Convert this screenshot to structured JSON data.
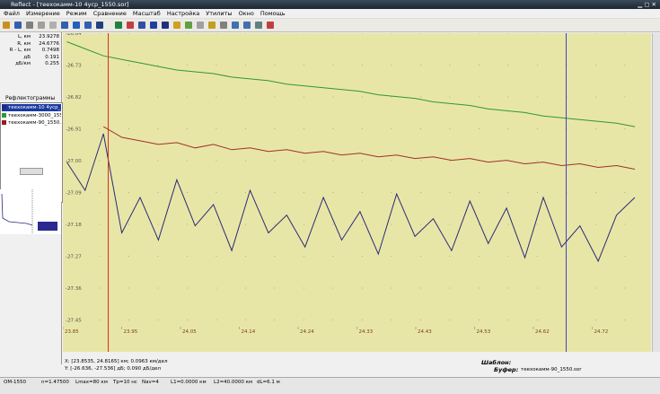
{
  "window": {
    "title": "Reflect - [теехокамм-10 4уср_1550.sor]"
  },
  "menu": [
    "Файл",
    "Измерение",
    "Режим",
    "Сравнение",
    "Масштаб",
    "Настройка",
    "Утилиты",
    "Окно",
    "Помощь"
  ],
  "measurements": [
    {
      "label": "L, км",
      "value": "23.9278"
    },
    {
      "label": "R, км",
      "value": "24.6776"
    },
    {
      "label": "R - L, км",
      "value": "0.7498"
    },
    {
      "label": "дБ",
      "value": "0.191"
    },
    {
      "label": "дБ/км",
      "value": "0.255"
    }
  ],
  "traces_panel": {
    "title": "Рефлектограммы",
    "items": [
      {
        "name": "теехокамм-10 4уср_",
        "color": "#1a2a8c"
      },
      {
        "name": "теехокамм-3000_1550",
        "color": "#2e9a2e"
      },
      {
        "name": "теехокамм-90_1550.s",
        "color": "#9a1a1a"
      }
    ]
  },
  "chart_data": {
    "type": "line",
    "xlim": [
      23.8535,
      24.8165
    ],
    "ylim": [
      -27.536,
      -26.636
    ],
    "xticks": [
      {
        "value": 23.8535,
        "label": "23.85"
      },
      {
        "value": 23.9498,
        "label": "23.95"
      },
      {
        "value": 24.0461,
        "label": "24.05"
      },
      {
        "value": 24.1424,
        "label": "24.14"
      },
      {
        "value": 24.2387,
        "label": "24.24"
      },
      {
        "value": 24.335,
        "label": "24.33"
      },
      {
        "value": 24.4313,
        "label": "24.43"
      },
      {
        "value": 24.5276,
        "label": "24.53"
      },
      {
        "value": 24.6239,
        "label": "24.62"
      },
      {
        "value": 24.7202,
        "label": "24.72"
      }
    ],
    "yticks": [
      {
        "value": -26.636,
        "label": "-26.64"
      },
      {
        "value": -26.726,
        "label": "-26.73"
      },
      {
        "value": -26.816,
        "label": "-26.82"
      },
      {
        "value": -26.906,
        "label": "-26.91"
      },
      {
        "value": -26.996,
        "label": "-27.00"
      },
      {
        "value": -27.086,
        "label": "-27.09"
      },
      {
        "value": -27.176,
        "label": "-27.18"
      },
      {
        "value": -27.266,
        "label": "-27.27"
      },
      {
        "value": -27.356,
        "label": "-27.36"
      },
      {
        "value": -27.446,
        "label": "-27.45"
      }
    ],
    "grid": true,
    "background": "#e8e6a6",
    "cursors": [
      {
        "value": 23.9278,
        "color": "#d03020"
      },
      {
        "value": 24.6776,
        "color": "#4040d0"
      }
    ],
    "x": [
      23.86,
      23.89,
      23.92,
      23.95,
      23.98,
      24.01,
      24.04,
      24.07,
      24.1,
      24.13,
      24.16,
      24.19,
      24.22,
      24.25,
      24.28,
      24.31,
      24.34,
      24.37,
      24.4,
      24.43,
      24.46,
      24.49,
      24.52,
      24.55,
      24.58,
      24.61,
      24.64,
      24.67,
      24.7,
      24.73,
      24.76,
      24.79
    ],
    "series": [
      {
        "name": "теехокамм-3000_1550",
        "color": "#2e9a2e",
        "values": [
          -26.66,
          -26.68,
          -26.7,
          -26.71,
          -26.72,
          -26.73,
          -26.74,
          -26.745,
          -26.75,
          -26.76,
          -26.765,
          -26.77,
          -26.78,
          -26.785,
          -26.79,
          -26.795,
          -26.8,
          -26.81,
          -26.815,
          -26.82,
          -26.83,
          -26.835,
          -26.84,
          -26.85,
          -26.855,
          -26.86,
          -26.87,
          -26.875,
          -26.88,
          -26.885,
          -26.89,
          -26.9
        ]
      },
      {
        "name": "теехокамм-90_1550.s",
        "color": "#a0302a",
        "values": [
          null,
          null,
          -26.9,
          -26.93,
          -26.94,
          -26.95,
          -26.945,
          -26.96,
          -26.95,
          -26.965,
          -26.96,
          -26.97,
          -26.965,
          -26.975,
          -26.97,
          -26.98,
          -26.975,
          -26.985,
          -26.98,
          -26.99,
          -26.985,
          -26.995,
          -26.99,
          -27.0,
          -26.995,
          -27.005,
          -27.0,
          -27.01,
          -27.005,
          -27.015,
          -27.01,
          -27.02
        ]
      },
      {
        "name": "теехокамм-10 4уср_",
        "color": "#2a2a78",
        "values": [
          -27.0,
          -27.08,
          -26.92,
          -27.2,
          -27.1,
          -27.22,
          -27.05,
          -27.18,
          -27.12,
          -27.25,
          -27.08,
          -27.2,
          -27.15,
          -27.24,
          -27.1,
          -27.22,
          -27.14,
          -27.26,
          -27.09,
          -27.21,
          -27.16,
          -27.25,
          -27.11,
          -27.23,
          -27.13,
          -27.27,
          -27.1,
          -27.24,
          -27.18,
          -27.28,
          -27.15,
          -27.1
        ]
      }
    ]
  },
  "info": {
    "x_range": "X: [23.8535, 24.8165] км; 0.0963 км/дел",
    "y_range": "Y: [-26.636, -27.536] дБ; 0.090 дБ/дел",
    "template_label": "Шаблон:",
    "buffer_label": "Буфер:",
    "buffer_value": "теехокамм-90_1550.sor"
  },
  "status": [
    "OM-1550",
    "n=1.47500",
    "Lmax=80 км",
    "Tp=10 нс",
    "Nav=4",
    "L1=0.0000 км",
    "L2=40.0000 км",
    "dL=6.1 м"
  ]
}
